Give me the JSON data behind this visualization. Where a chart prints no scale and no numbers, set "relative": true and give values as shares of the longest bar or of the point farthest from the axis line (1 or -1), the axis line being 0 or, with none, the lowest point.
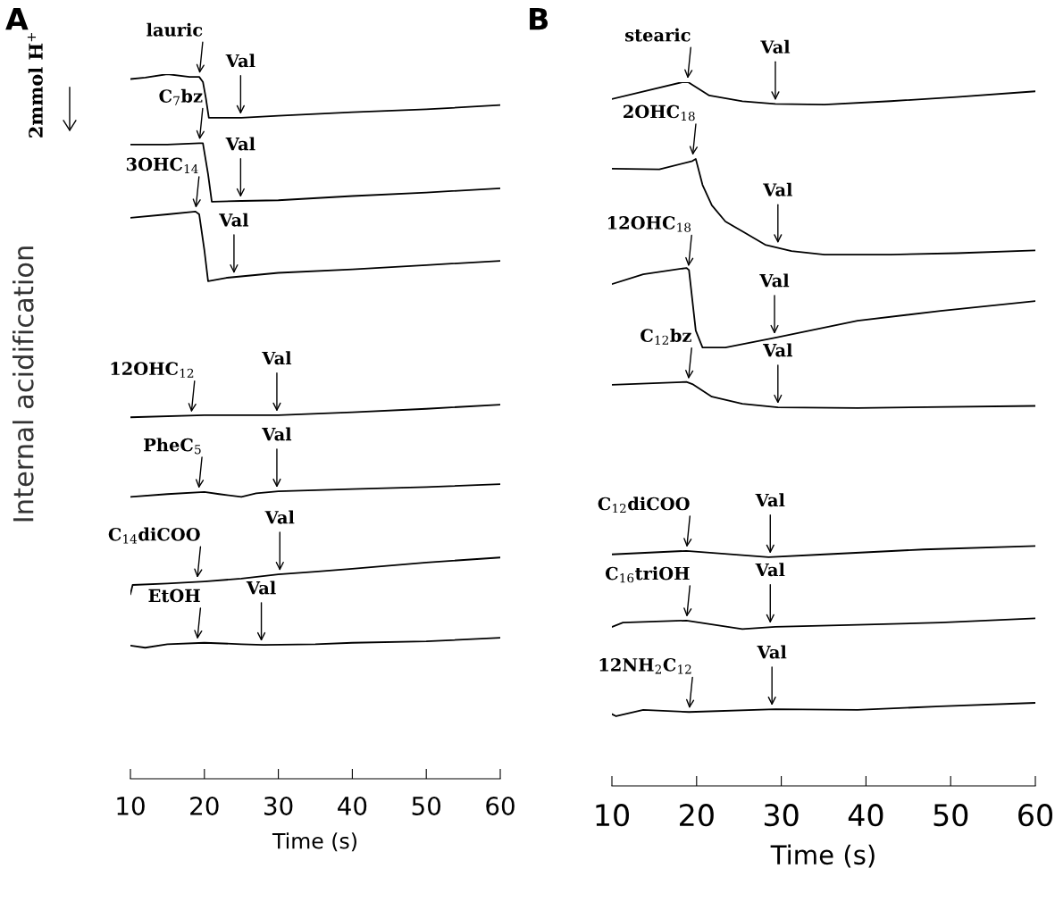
{
  "chart_data": [
    {
      "type": "line",
      "title": "A",
      "relative": true,
      "xlabel": "Time (s)",
      "ylabel": "Internal acidification",
      "xlim": [
        10,
        60
      ],
      "xticks": [
        10,
        20,
        30,
        40,
        50,
        60
      ],
      "series": [
        {
          "color": "#000000",
          "x": [
            10,
            12,
            15,
            18,
            19.3,
            19.8,
            20.2,
            20.6,
            22,
            25,
            30,
            40,
            50,
            60
          ],
          "values": [
            0.993,
            0.995,
            1.0,
            0.996,
            0.996,
            0.989,
            0.966,
            0.938,
            0.938,
            0.938,
            0.941,
            0.946,
            0.95,
            0.956
          ]
        },
        {
          "color": "#000000",
          "x": [
            10,
            15,
            19.3,
            19.8,
            20.5,
            21,
            25,
            30,
            40,
            50,
            60
          ],
          "values": [
            0.9,
            0.9,
            0.902,
            0.902,
            0.858,
            0.819,
            0.82,
            0.821,
            0.827,
            0.832,
            0.838
          ]
        },
        {
          "color": "#000000",
          "x": [
            10,
            15,
            18.8,
            19.3,
            20,
            20.5,
            23,
            24,
            30,
            40,
            50,
            60
          ],
          "values": [
            0.796,
            0.801,
            0.805,
            0.801,
            0.75,
            0.706,
            0.711,
            0.712,
            0.718,
            0.723,
            0.729,
            0.735
          ]
        },
        {
          "color": "#000000",
          "x": [
            10,
            20,
            30,
            40,
            50,
            60
          ],
          "values": [
            0.513,
            0.516,
            0.516,
            0.52,
            0.525,
            0.531
          ]
        },
        {
          "color": "#000000",
          "x": [
            10,
            15,
            20,
            22,
            25,
            27,
            30,
            40,
            50,
            60
          ],
          "values": [
            0.4,
            0.404,
            0.407,
            0.404,
            0.4,
            0.405,
            0.408,
            0.411,
            0.414,
            0.418
          ]
        },
        {
          "color": "#000000",
          "x": [
            10,
            10.3,
            15,
            20,
            25,
            30,
            35,
            40,
            50,
            60
          ],
          "values": [
            0.262,
            0.275,
            0.277,
            0.28,
            0.284,
            0.29,
            0.294,
            0.298,
            0.307,
            0.314
          ]
        },
        {
          "color": "#000000",
          "x": [
            10,
            12,
            15,
            20,
            25,
            28,
            35,
            40,
            50,
            60
          ],
          "values": [
            0.189,
            0.186,
            0.191,
            0.193,
            0.191,
            0.19,
            0.191,
            0.193,
            0.195,
            0.2
          ]
        }
      ],
      "annotations": [
        {
          "text": "lauric",
          "x": 19.3,
          "y": 0.996
        },
        {
          "text": "Val",
          "x": 24.9,
          "y": 0.938
        },
        {
          "text": "C$_{7}$bz",
          "x": 19.3,
          "y": 0.902
        },
        {
          "text": "Val",
          "x": 24.9,
          "y": 0.82
        },
        {
          "text": "3OHC$_{14}$",
          "x": 18.8,
          "y": 0.805
        },
        {
          "text": "Val",
          "x": 24.0,
          "y": 0.712
        },
        {
          "text": "12OHC$_{12}$",
          "x": 18.2,
          "y": 0.515
        },
        {
          "text": "Val",
          "x": 29.8,
          "y": 0.516
        },
        {
          "text": "PheC$_{5}$",
          "x": 19.2,
          "y": 0.407
        },
        {
          "text": "Val",
          "x": 29.8,
          "y": 0.408
        },
        {
          "text": "C$_{14}$diCOO",
          "x": 19.0,
          "y": 0.28
        },
        {
          "text": "Val",
          "x": 30.2,
          "y": 0.29
        },
        {
          "text": "EtOH",
          "x": 19.0,
          "y": 0.193
        },
        {
          "text": "Val",
          "x": 27.7,
          "y": 0.19
        },
        "2mmol H$^{+}$"
      ]
    },
    {
      "type": "line",
      "title": "B",
      "relative": true,
      "xlabel": "Time (s)",
      "xlim": [
        10,
        60
      ],
      "xticks": [
        10,
        20,
        30,
        40,
        50,
        60
      ],
      "series": [
        {
          "color": "#000000",
          "x": [
            10,
            18.3,
            19.0,
            21.5,
            25.4,
            29.3,
            35.1,
            42.9,
            50.7,
            60
          ],
          "values": [
            0.976,
            1.0,
            1.0,
            0.981,
            0.973,
            0.969,
            0.968,
            0.973,
            0.979,
            0.987
          ]
        },
        {
          "color": "#000000",
          "x": [
            10,
            15.6,
            19.5,
            19.9,
            20.7,
            21.8,
            23.4,
            25.4,
            28.1,
            31.2,
            35.1,
            42.9,
            50.7,
            60
          ],
          "values": [
            0.877,
            0.876,
            0.888,
            0.891,
            0.854,
            0.825,
            0.802,
            0.788,
            0.769,
            0.76,
            0.755,
            0.755,
            0.757,
            0.761
          ]
        },
        {
          "color": "#000000",
          "x": [
            10,
            13.7,
            18.8,
            19.1,
            19.9,
            20.7,
            23.4,
            29.3,
            39.0,
            48.8,
            60
          ],
          "values": [
            0.713,
            0.727,
            0.736,
            0.733,
            0.647,
            0.623,
            0.623,
            0.637,
            0.661,
            0.675,
            0.689
          ]
        },
        {
          "color": "#000000",
          "x": [
            10,
            18.8,
            19.5,
            21.8,
            25.4,
            29.6,
            39.0,
            60
          ],
          "values": [
            0.57,
            0.574,
            0.571,
            0.553,
            0.543,
            0.538,
            0.537,
            0.54
          ]
        },
        {
          "color": "#000000",
          "x": [
            10,
            18.8,
            28.5,
            35.1,
            46.8,
            60
          ],
          "values": [
            0.329,
            0.334,
            0.325,
            0.329,
            0.336,
            0.341
          ]
        },
        {
          "color": "#000000",
          "x": [
            10,
            11.3,
            18.8,
            25.4,
            29.3,
            39,
            48.8,
            60
          ],
          "values": [
            0.226,
            0.232,
            0.235,
            0.223,
            0.226,
            0.229,
            0.232,
            0.238
          ]
        },
        {
          "color": "#000000",
          "x": [
            10,
            10.5,
            13.7,
            19.1,
            29.3,
            39,
            48.8,
            60
          ],
          "values": [
            0.102,
            0.099,
            0.108,
            0.105,
            0.109,
            0.108,
            0.113,
            0.118
          ]
        }
      ],
      "annotations": [
        {
          "text": "stearic",
          "x": 18.9,
          "y": 1.0
        },
        {
          "text": "Val",
          "x": 29.3,
          "y": 0.969
        },
        {
          "text": "2OHC$_{18}$",
          "x": 19.5,
          "y": 0.891
        },
        {
          "text": "Val",
          "x": 29.6,
          "y": 0.766
        },
        {
          "text": "12OHC$_{18}$",
          "x": 19.0,
          "y": 0.733
        },
        {
          "text": "Val",
          "x": 29.2,
          "y": 0.637
        },
        {
          "text": "C$_{12}$bz",
          "x": 19.0,
          "y": 0.573
        },
        {
          "text": "Val",
          "x": 29.6,
          "y": 0.538
        },
        {
          "text": "C$_{12}$diCOO",
          "x": 18.8,
          "y": 0.334
        },
        {
          "text": "Val",
          "x": 28.7,
          "y": 0.325
        },
        {
          "text": "C$_{16}$triOH",
          "x": 18.8,
          "y": 0.235
        },
        {
          "text": "Val",
          "x": 28.7,
          "y": 0.226
        },
        {
          "text": "12NH$_{2}$C$_{12}$",
          "x": 19.1,
          "y": 0.105
        },
        {
          "text": "Val",
          "x": 28.9,
          "y": 0.109
        }
      ]
    }
  ]
}
